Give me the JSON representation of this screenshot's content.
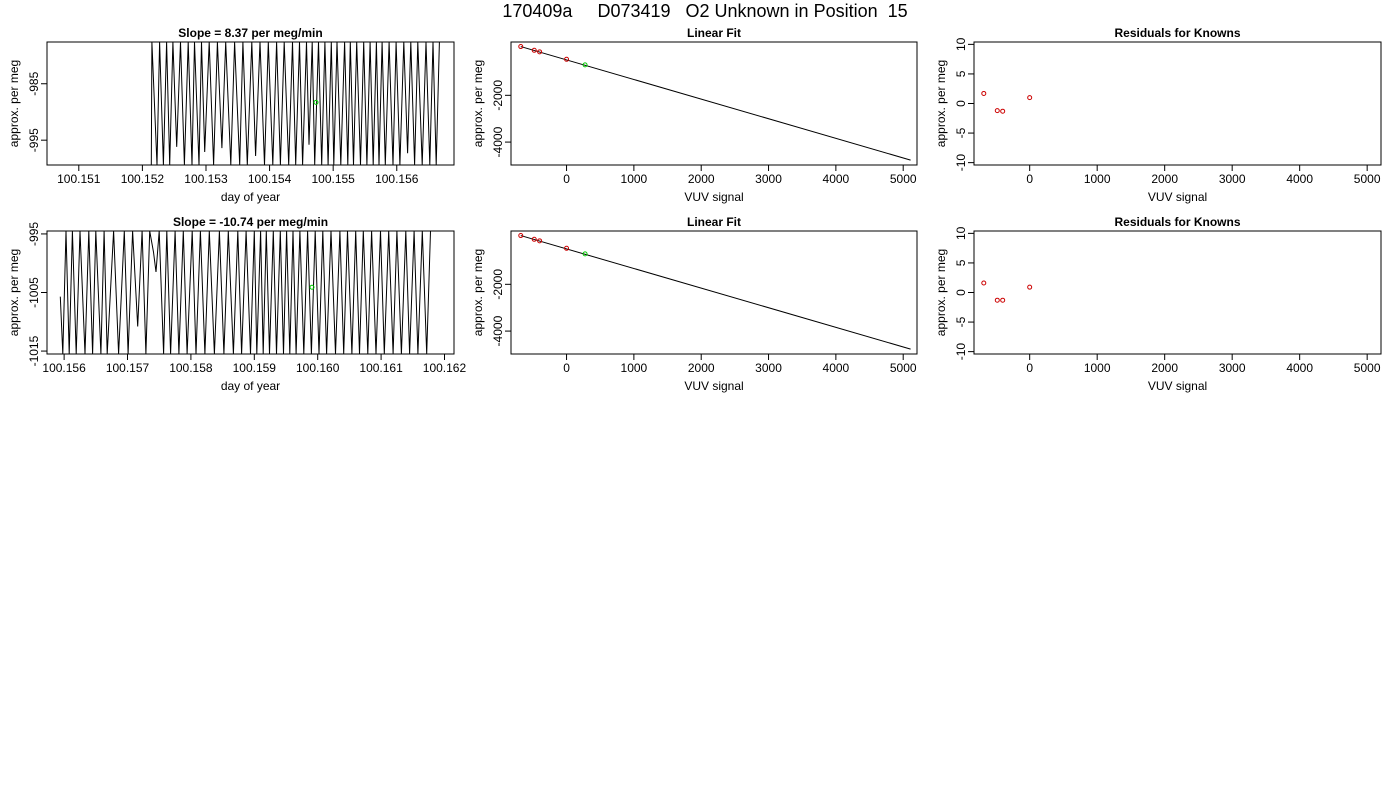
{
  "page": {
    "title": "170409a     D073419   O2 Unknown in Position  15"
  },
  "chart_data": [
    {
      "id": "ts1",
      "type": "line",
      "title": "Slope =  8.37  per meg/min",
      "xlabel": "day of year",
      "ylabel": "approx. per meg",
      "xlim": [
        100.1505,
        100.1569
      ],
      "ylim": [
        -999.4,
        -977.6
      ],
      "x_ticks": [
        100.151,
        100.152,
        100.153,
        100.154,
        100.155,
        100.156
      ],
      "x_tick_labels": [
        "100.151",
        "100.152",
        "100.153",
        "100.154",
        "100.155",
        "100.156"
      ],
      "y_ticks": [
        -985,
        -995
      ],
      "y_tick_labels": [
        "-985",
        "-995"
      ],
      "series": [
        {
          "color": "#000000",
          "x": [
            100.15214,
            100.15215,
            100.15223,
            100.15227,
            100.15233,
            100.15238,
            100.15243,
            100.15248,
            100.15254,
            100.1526,
            100.15266,
            100.15272,
            100.15278,
            100.15282,
            100.15289,
            100.15293,
            100.15298,
            100.15305,
            100.15312,
            100.15318,
            100.15325,
            100.15331,
            100.15339,
            100.15345,
            100.15353,
            100.15358,
            100.15365,
            100.15372,
            100.15378,
            100.15385,
            100.15392,
            100.15398,
            100.15405,
            100.15411,
            100.15417,
            100.15423,
            100.1543,
            100.15436,
            100.15441,
            100.15447,
            100.15452,
            100.15458,
            100.15462,
            100.15467,
            100.15471,
            100.15477,
            100.15482,
            100.15487,
            100.15492,
            100.15497,
            100.15501,
            100.15506,
            100.15512,
            100.15518,
            100.15523,
            100.15527,
            100.15532,
            100.15537,
            100.15543,
            100.15548,
            100.15553,
            100.15558,
            100.15563,
            100.15568,
            100.15572,
            100.15577,
            100.15582,
            100.15588,
            100.15594,
            100.15599,
            100.15605,
            100.15611,
            100.15617,
            100.15622,
            100.15628,
            100.15633,
            100.1564,
            100.15646,
            100.15652,
            100.15657,
            100.15662,
            100.15667
          ],
          "y": [
            -999.4,
            -977.6,
            -999.4,
            -977.6,
            -999.4,
            -977.6,
            -999.4,
            -977.6,
            -996.2,
            -977.6,
            -999.4,
            -977.6,
            -999.4,
            -977.6,
            -999.4,
            -977.6,
            -997.1,
            -977.6,
            -999.4,
            -977.6,
            -996.4,
            -977.6,
            -999.4,
            -977.6,
            -999.4,
            -977.6,
            -999.4,
            -977.6,
            -997.8,
            -977.6,
            -999.4,
            -977.6,
            -999.4,
            -977.6,
            -999.4,
            -977.6,
            -999.4,
            -977.6,
            -999.4,
            -977.6,
            -999.4,
            -977.6,
            -995.8,
            -977.6,
            -999.4,
            -977.6,
            -999.4,
            -977.6,
            -999.4,
            -977.6,
            -999.4,
            -977.6,
            -999.4,
            -977.6,
            -999.4,
            -977.6,
            -999.4,
            -977.6,
            -999.4,
            -977.6,
            -999.4,
            -977.6,
            -999.4,
            -977.6,
            -999.4,
            -977.6,
            -999.4,
            -977.6,
            -999.4,
            -977.6,
            -999.4,
            -977.6,
            -997.3,
            -977.6,
            -999.4,
            -977.6,
            -999.4,
            -977.6,
            -999.4,
            -977.6,
            -999.4,
            -977.6
          ]
        },
        {
          "color": "#00cc00",
          "marker": "circle",
          "x": [
            100.15473
          ],
          "y": [
            -988.3
          ]
        }
      ]
    },
    {
      "id": "fit1",
      "type": "scatter",
      "title": "Linear Fit",
      "xlabel": "VUV signal",
      "ylabel": "approx. per meg",
      "xlim": [
        -825,
        5205
      ],
      "ylim": [
        -4980,
        280
      ],
      "x_ticks": [
        0,
        1000,
        2000,
        3000,
        4000,
        5000
      ],
      "x_tick_labels": [
        "0",
        "1000",
        "2000",
        "3000",
        "4000",
        "5000"
      ],
      "y_ticks": [
        -2000,
        -4000
      ],
      "y_tick_labels": [
        "-2000",
        "-4000"
      ],
      "fit_line": {
        "x": [
          -680,
          5110
        ],
        "y": [
          85,
          -4770
        ]
      },
      "series": [
        {
          "color": "#cc0000",
          "marker": "circle",
          "x": [
            -680,
            -480,
            -400,
            0
          ],
          "y": [
            85,
            -75,
            -140,
            -460
          ]
        },
        {
          "color": "#00cc00",
          "marker": "circle",
          "x": [
            275
          ],
          "y": [
            -700
          ]
        }
      ]
    },
    {
      "id": "res1",
      "type": "scatter",
      "title": "Residuals for Knowns",
      "xlabel": "VUV signal",
      "ylabel": "approx. per meg",
      "xlim": [
        -825,
        5205
      ],
      "ylim": [
        -10.4,
        10.4
      ],
      "x_ticks": [
        0,
        1000,
        2000,
        3000,
        4000,
        5000
      ],
      "x_tick_labels": [
        "0",
        "1000",
        "2000",
        "3000",
        "4000",
        "5000"
      ],
      "y_ticks": [
        10,
        5,
        0,
        -5,
        -10
      ],
      "y_tick_labels": [
        "10",
        "5",
        "0",
        "-5",
        "-10"
      ],
      "series": [
        {
          "color": "#cc0000",
          "marker": "circle",
          "x": [
            -680,
            -480,
            -400,
            0
          ],
          "y": [
            1.7,
            -1.2,
            -1.3,
            1.0
          ]
        }
      ]
    },
    {
      "id": "ts2",
      "type": "line",
      "title": "Slope =  -10.74  per meg/min",
      "xlabel": "day of year",
      "ylabel": "approx. per meg",
      "xlim": [
        100.15573,
        100.16215
      ],
      "ylim": [
        -1015.5,
        -994.5
      ],
      "x_ticks": [
        100.156,
        100.157,
        100.158,
        100.159,
        100.16,
        100.161,
        100.162
      ],
      "x_tick_labels": [
        "100.156",
        "100.157",
        "100.158",
        "100.159",
        "100.160",
        "100.161",
        "100.162"
      ],
      "y_ticks": [
        -995,
        -1005,
        -1015
      ],
      "y_tick_labels": [
        "-995",
        "-1005",
        "-1015"
      ],
      "series": [
        {
          "color": "#000000",
          "x": [
            100.15594,
            100.15598,
            100.15603,
            100.15608,
            100.15613,
            100.15619,
            100.15625,
            100.15633,
            100.15639,
            100.15645,
            100.1565,
            100.15658,
            100.15663,
            100.15668,
            100.15678,
            100.15686,
            100.15695,
            100.15701,
            100.15708,
            100.15716,
            100.15723,
            100.15729,
            100.15735,
            100.15741,
            100.15745,
            100.1575,
            100.15757,
            100.15762,
            100.15768,
            100.15775,
            100.15781,
            100.15788,
            100.15794,
            100.15802,
            100.15808,
            100.15815,
            100.15822,
            100.15829,
            100.15837,
            100.15845,
            100.15852,
            100.15859,
            100.15867,
            100.15874,
            100.1588,
            100.15887,
            100.15894,
            100.159,
            100.15904,
            100.1591,
            100.15914,
            100.15919,
            100.15924,
            100.1593,
            100.15935,
            100.15941,
            100.15946,
            100.15951,
            100.15956,
            100.15961,
            100.15966,
            100.15972,
            100.15978,
            100.15984,
            100.1599,
            100.15996,
            100.16002,
            100.16008,
            100.16014,
            100.16021,
            100.16028,
            100.16035,
            100.16041,
            100.16047,
            100.16054,
            100.1606,
            100.16066,
            100.16072,
            100.16079,
            100.16085,
            100.16092,
            100.16099,
            100.16105,
            100.16112,
            100.16119,
            100.16125,
            100.16132,
            100.16139,
            100.16145,
            100.16152,
            100.16158,
            100.16165,
            100.16172,
            100.16178,
            100.16184
          ],
          "y": [
            -1005.7,
            -1015.5,
            -994.5,
            -1015.5,
            -994.5,
            -1015.5,
            -994.5,
            -1015.5,
            -994.5,
            -1015.5,
            -994.5,
            -1015.5,
            -994.5,
            -1015.5,
            -994.5,
            -1015.5,
            -994.5,
            -1015.5,
            -994.5,
            -1010.8,
            -994.5,
            -1015.5,
            -994.5,
            -998.1,
            -1001.5,
            -994.5,
            -1015.5,
            -994.5,
            -1015.5,
            -994.5,
            -1015.5,
            -994.5,
            -1015.5,
            -994.5,
            -1015.5,
            -994.5,
            -1015.5,
            -994.5,
            -1015.5,
            -994.5,
            -1015.5,
            -994.5,
            -1015.5,
            -994.5,
            -1015.5,
            -994.5,
            -1015.5,
            -994.5,
            -1015.5,
            -994.5,
            -1015.5,
            -994.5,
            -1015.5,
            -994.5,
            -1015.5,
            -994.5,
            -1015.5,
            -994.5,
            -1015.5,
            -994.5,
            -1015.5,
            -994.5,
            -1015.5,
            -994.5,
            -1015.5,
            -994.5,
            -1015.5,
            -994.5,
            -1015.5,
            -994.5,
            -1015.5,
            -994.5,
            -1015.5,
            -994.5,
            -1015.5,
            -994.5,
            -1015.5,
            -994.5,
            -1015.5,
            -994.5,
            -1015.5,
            -994.5,
            -1015.5,
            -994.5,
            -1015.5,
            -994.5,
            -1015.5,
            -994.5,
            -1015.5,
            -994.5,
            -1015.5,
            -994.5,
            -1015.5,
            -994.5,
            -994.5
          ]
        },
        {
          "color": "#00cc00",
          "marker": "circle",
          "x": [
            100.15991
          ],
          "y": [
            -1004.1
          ]
        }
      ]
    },
    {
      "id": "fit2",
      "type": "scatter",
      "title": "Linear Fit",
      "xlabel": "VUV signal",
      "ylabel": "approx. per meg",
      "xlim": [
        -825,
        5205
      ],
      "ylim": [
        -4980,
        280
      ],
      "x_ticks": [
        0,
        1000,
        2000,
        3000,
        4000,
        5000
      ],
      "x_tick_labels": [
        "0",
        "1000",
        "2000",
        "3000",
        "4000",
        "5000"
      ],
      "y_ticks": [
        -2000,
        -4000
      ],
      "y_tick_labels": [
        "-2000",
        "-4000"
      ],
      "fit_line": {
        "x": [
          -680,
          5110
        ],
        "y": [
          85,
          -4770
        ]
      },
      "series": [
        {
          "color": "#cc0000",
          "marker": "circle",
          "x": [
            -680,
            -480,
            -400,
            0
          ],
          "y": [
            85,
            -75,
            -140,
            -460
          ]
        },
        {
          "color": "#00cc00",
          "marker": "circle",
          "x": [
            275
          ],
          "y": [
            -700
          ]
        }
      ]
    },
    {
      "id": "res2",
      "type": "scatter",
      "title": "Residuals for Knowns",
      "xlabel": "VUV signal",
      "ylabel": "approx. per meg",
      "xlim": [
        -825,
        5205
      ],
      "ylim": [
        -10.4,
        10.4
      ],
      "x_ticks": [
        0,
        1000,
        2000,
        3000,
        4000,
        5000
      ],
      "x_tick_labels": [
        "0",
        "1000",
        "2000",
        "3000",
        "4000",
        "5000"
      ],
      "y_ticks": [
        10,
        5,
        0,
        -5,
        -10
      ],
      "y_tick_labels": [
        "10",
        "5",
        "0",
        "-5",
        "-10"
      ],
      "series": [
        {
          "color": "#cc0000",
          "marker": "circle",
          "x": [
            -680,
            -480,
            -400,
            0
          ],
          "y": [
            1.6,
            -1.3,
            -1.3,
            0.9
          ]
        }
      ]
    }
  ]
}
